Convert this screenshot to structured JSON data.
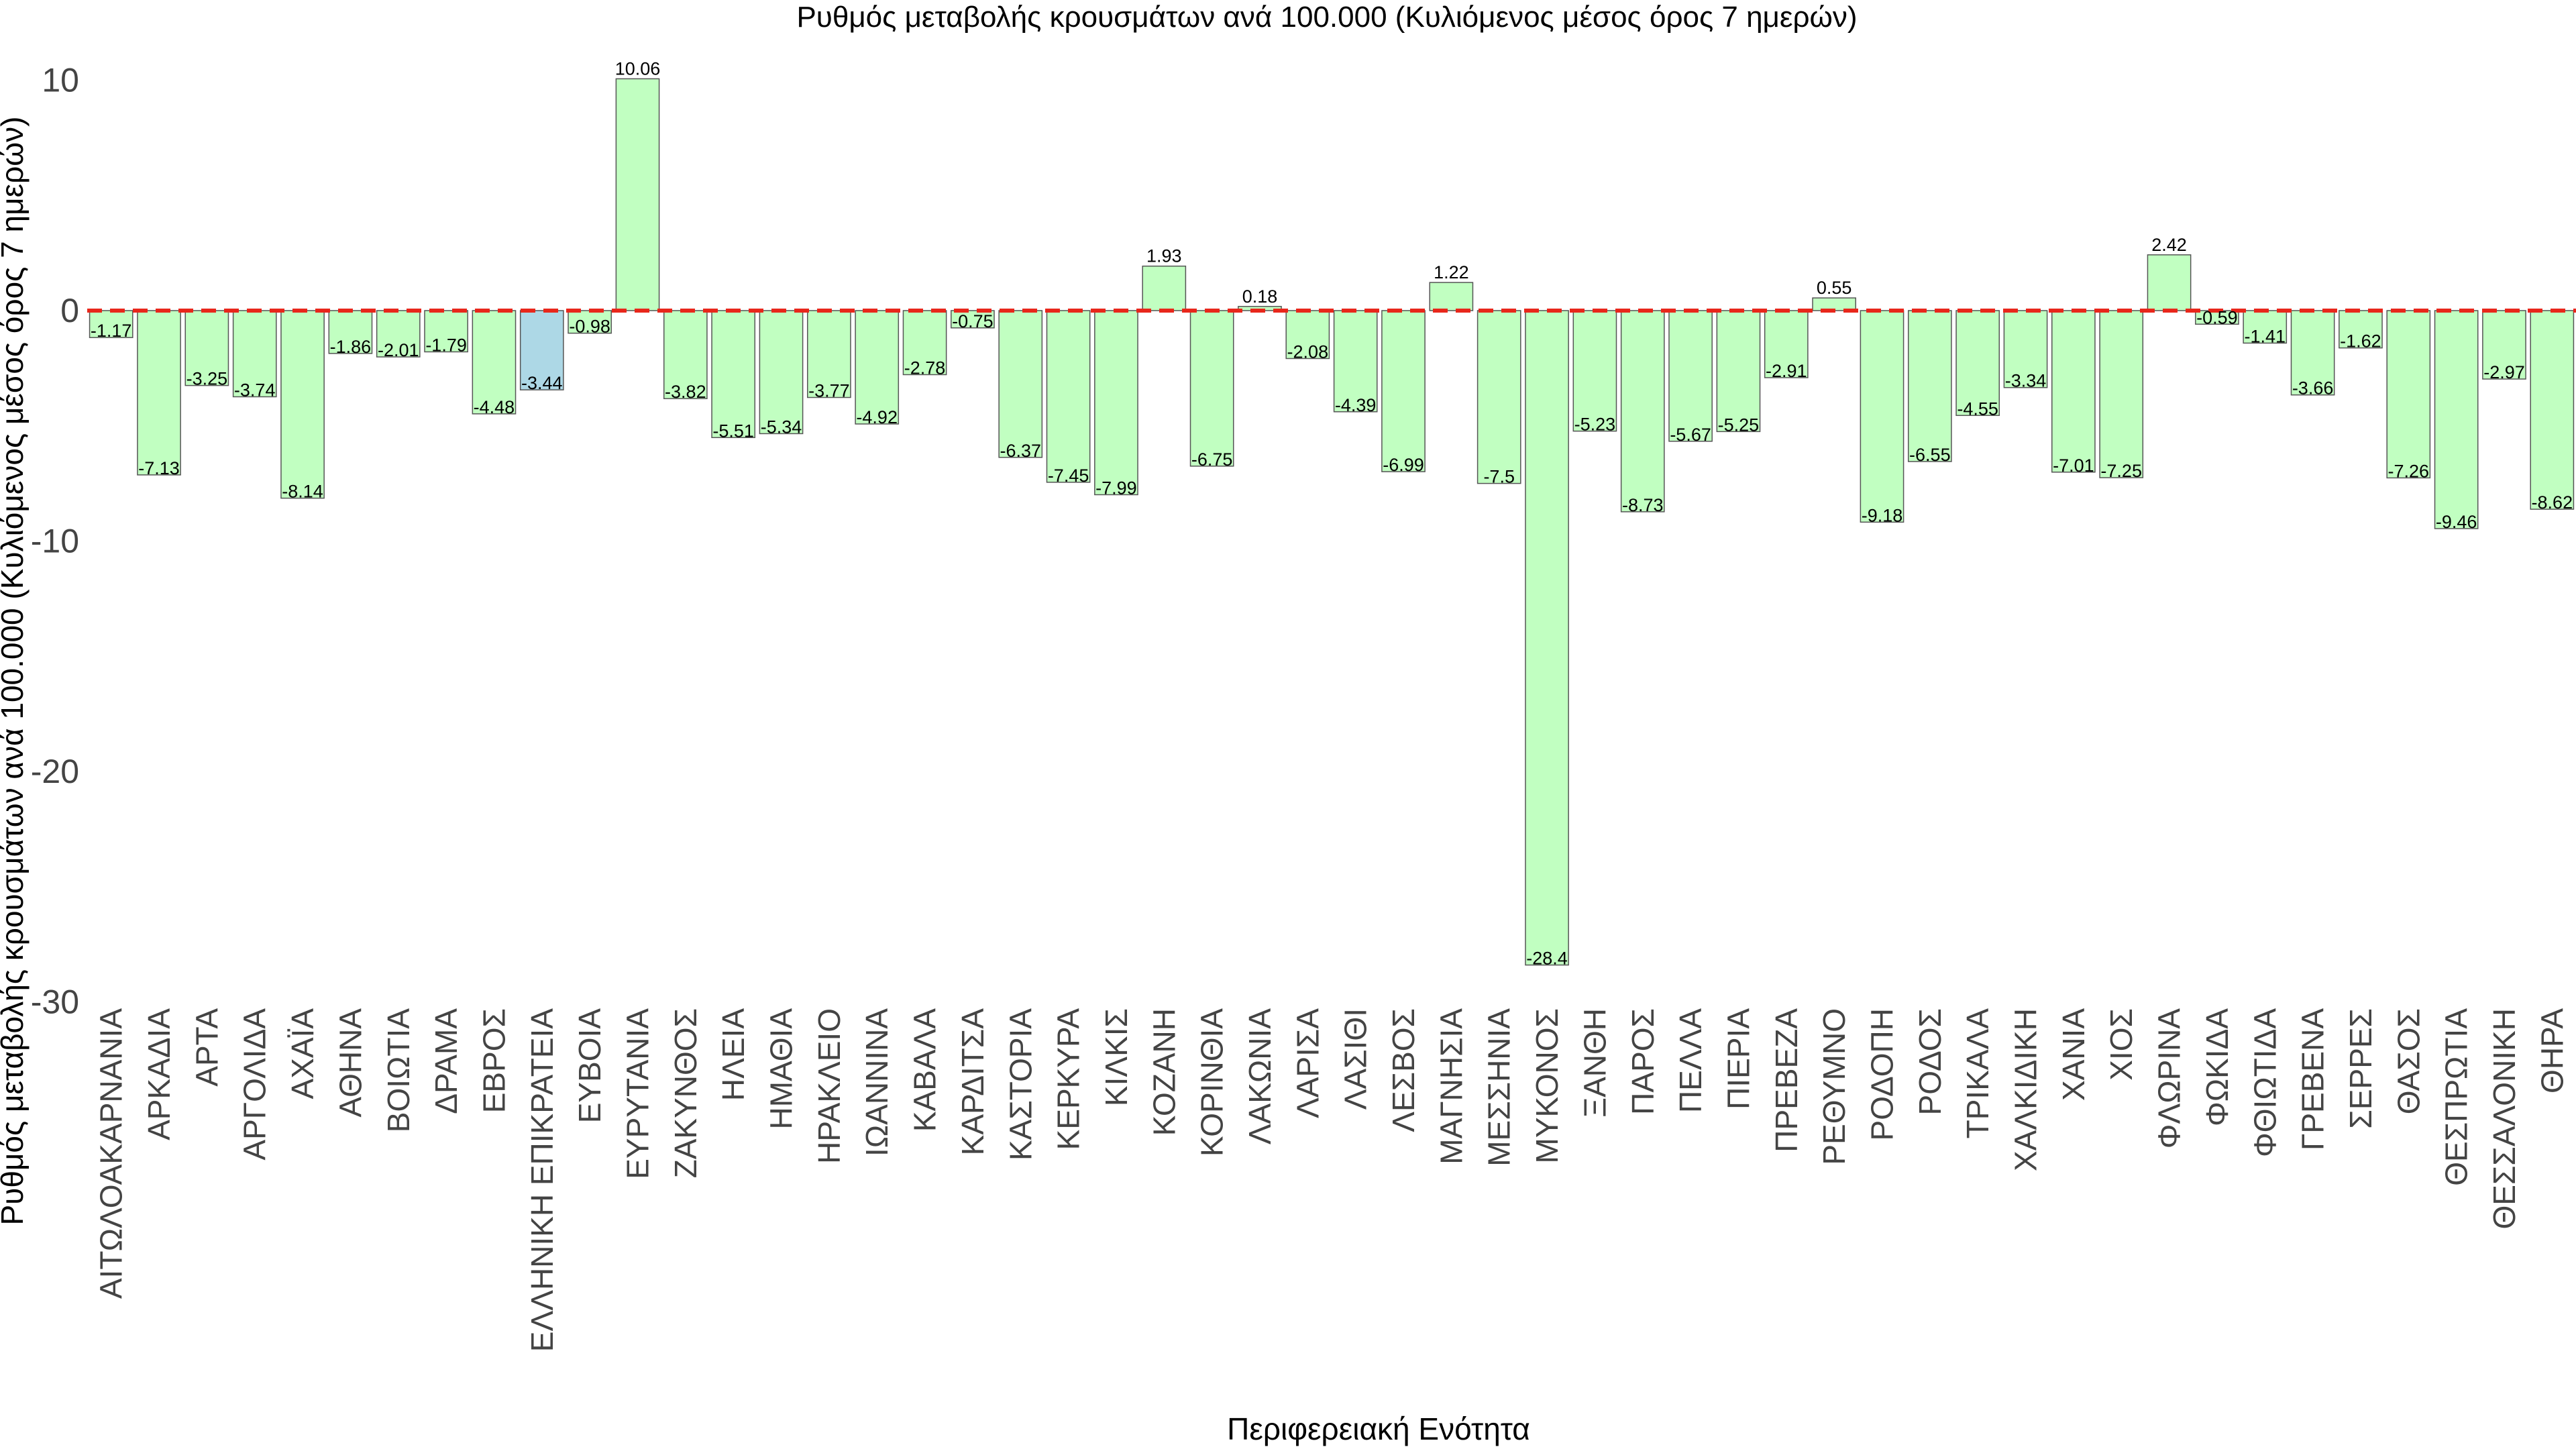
{
  "chart_data": {
    "type": "bar",
    "title": "Ρυθμός μεταβολής κρουσμάτων ανά 100.000 (Κυλιόμενος μέσος όρος 7 ημερών)",
    "xlabel": "Περιφερειακή Ενότητα",
    "ylabel": "Ρυθμός μεταβολής κρουσμάτων ανά 100.000 (Κυλιόμενος μέσος όρος 7 ημερών)",
    "ylim": [
      -30,
      12
    ],
    "yticks": [
      10,
      0,
      -10,
      -20,
      -30
    ],
    "reference_line": {
      "value": 0,
      "color": "#e8271b",
      "style": "dashed"
    },
    "colors": {
      "default": "#c1ffc1",
      "highlight": "#add8e6",
      "stroke": "#555555"
    },
    "highlight_category": "ΕΛΛΗΝΙΚΗ ΕΠΙΚΡΑΤΕΙΑ",
    "categories": [
      "ΑΙΤΩΛΟΑΚΑΡΝΑΝΙΑ",
      "ΑΡΚΑΔΙΑ",
      "ΑΡΤΑ",
      "ΑΡΓΟΛΙΔΑ",
      "ΑΧΑΪΑ",
      "ΑΘΗΝΑ",
      "ΒΟΙΩΤΙΑ",
      "ΔΡΑΜΑ",
      "ΕΒΡΟΣ",
      "ΕΛΛΗΝΙΚΗ ΕΠΙΚΡΑΤΕΙΑ",
      "ΕΥΒΟΙΑ",
      "ΕΥΡΥΤΑΝΙΑ",
      "ΖΑΚΥΝΘΟΣ",
      "ΗΛΕΙΑ",
      "ΗΜΑΘΙΑ",
      "ΗΡΑΚΛΕΙΟ",
      "ΙΩΑΝΝΙΝΑ",
      "ΚΑΒΑΛΑ",
      "ΚΑΡΔΙΤΣΑ",
      "ΚΑΣΤΟΡΙΑ",
      "ΚΕΡΚΥΡΑ",
      "ΚΙΛΚΙΣ",
      "ΚΟΖΑΝΗ",
      "ΚΟΡΙΝΘΙΑ",
      "ΛΑΚΩΝΙΑ",
      "ΛΑΡΙΣΑ",
      "ΛΑΣΙΘΙ",
      "ΛΕΣΒΟΣ",
      "ΜΑΓΝΗΣΙΑ",
      "ΜΕΣΣΗΝΙΑ",
      "ΜΥΚΟΝΟΣ",
      "ΞΑΝΘΗ",
      "ΠΑΡΟΣ",
      "ΠΕΛΛΑ",
      "ΠΙΕΡΙΑ",
      "ΠΡΕΒΕΖΑ",
      "ΡΕΘΥΜΝΟ",
      "ΡΟΔΟΠΗ",
      "ΡΟΔΟΣ",
      "ΤΡΙΚΑΛΑ",
      "ΧΑΛΚΙΔΙΚΗ",
      "ΧΑΝΙΑ",
      "ΧΙΟΣ",
      "ΦΛΩΡΙΝΑ",
      "ΦΩΚΙΔΑ",
      "ΦΘΙΩΤΙΔΑ",
      "ΓΡΕΒΕΝΑ",
      "ΣΕΡΡΕΣ",
      "ΘΑΣΟΣ",
      "ΘΕΣΠΡΩΤΙΑ",
      "ΘΕΣΣΑΛΟΝΙΚΗ",
      "ΘΗΡΑ"
    ],
    "values": [
      -1.17,
      -7.13,
      -3.25,
      -3.74,
      -8.14,
      -1.86,
      -2.01,
      -1.79,
      -4.48,
      -3.44,
      -0.98,
      10.06,
      -3.82,
      -5.51,
      -5.34,
      -3.77,
      -4.92,
      -2.78,
      -0.75,
      -6.37,
      -7.45,
      -7.99,
      1.93,
      -6.75,
      0.18,
      -2.08,
      -4.39,
      -6.99,
      1.22,
      -7.5,
      -28.4,
      -5.23,
      -8.73,
      -5.67,
      -5.25,
      -2.91,
      0.55,
      -9.18,
      -6.55,
      -4.55,
      -3.34,
      -7.01,
      -7.25,
      2.42,
      -0.59,
      -1.41,
      -3.66,
      -1.62,
      -7.26,
      -9.46,
      -2.97,
      -8.62
    ]
  }
}
